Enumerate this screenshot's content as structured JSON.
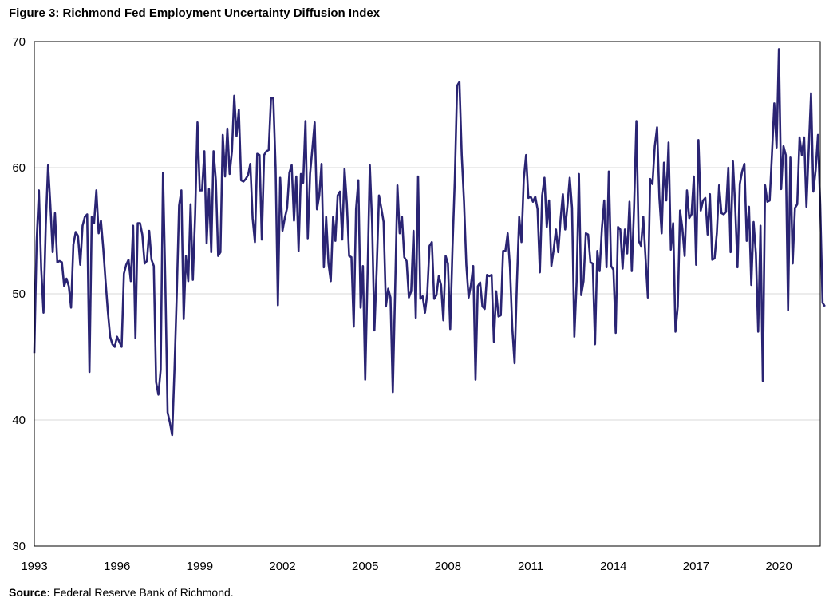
{
  "title": "Figure 3: Richmond Fed Employment Uncertainty Diffusion Index",
  "source": {
    "label": "Source:",
    "text": " Federal Reserve Bank of Richmond."
  },
  "chart_data": {
    "type": "line",
    "title": "Figure 3: Richmond Fed Employment Uncertainty Diffusion Index",
    "xlabel": "",
    "ylabel": "",
    "ylim": [
      30,
      70
    ],
    "xlim": [
      1993.0,
      2021.5
    ],
    "yticks": [
      30,
      40,
      50,
      60,
      70
    ],
    "xticks": [
      1993,
      1996,
      1999,
      2002,
      2005,
      2008,
      2011,
      2014,
      2017,
      2020
    ],
    "grid": {
      "horizontal": true,
      "vertical": false
    },
    "line_color": "#2a2473",
    "series": [
      {
        "x_start": 1993.0,
        "x_step_months": 1,
        "values": [
          45.3,
          54.1,
          58.2,
          52.0,
          48.5,
          55.5,
          60.2,
          57.0,
          53.3,
          56.4,
          52.5,
          52.6,
          52.5,
          50.6,
          51.2,
          50.6,
          48.9,
          53.9,
          54.9,
          54.6,
          52.3,
          55.4,
          56.1,
          56.3,
          43.8,
          56.1,
          55.6,
          58.2,
          54.8,
          55.8,
          53.6,
          51.0,
          48.6,
          46.6,
          46.0,
          45.8,
          46.6,
          46.2,
          45.8,
          51.6,
          52.3,
          52.7,
          51.0,
          55.4,
          46.5,
          55.6,
          55.6,
          54.7,
          52.4,
          52.6,
          55.0,
          52.7,
          52.2,
          43.0,
          42.0,
          44.0,
          59.6,
          51.0,
          40.6,
          39.8,
          38.8,
          44.0,
          50.0,
          57.0,
          58.2,
          48.0,
          53.0,
          51.0,
          57.1,
          51.1,
          56.3,
          63.6,
          58.2,
          58.2,
          61.3,
          54.0,
          58.3,
          53.3,
          61.3,
          59.0,
          53.0,
          53.3,
          62.6,
          59.3,
          63.1,
          59.5,
          61.3,
          65.7,
          62.5,
          64.6,
          59.0,
          58.9,
          59.1,
          59.4,
          60.3,
          56.0,
          54.1,
          61.1,
          61.0,
          54.3,
          61.0,
          61.3,
          61.4,
          65.5,
          65.5,
          60.0,
          49.1,
          59.2,
          55.0,
          56.0,
          56.8,
          59.6,
          60.2,
          55.8,
          59.3,
          53.4,
          59.5,
          58.8,
          63.7,
          54.4,
          59.5,
          61.5,
          63.6,
          56.7,
          57.8,
          60.3,
          52.1,
          56.1,
          52.4,
          51.0,
          56.1,
          54.2,
          57.8,
          58.1,
          54.3,
          59.9,
          57.2,
          53.0,
          52.9,
          47.4,
          56.7,
          59.0,
          48.9,
          52.2,
          43.2,
          51.4,
          60.2,
          55.6,
          47.1,
          52.0,
          57.8,
          56.8,
          55.7,
          49.0,
          50.4,
          49.7,
          42.2,
          50.2,
          58.6,
          54.8,
          56.1,
          52.9,
          52.6,
          49.7,
          50.2,
          55.0,
          48.1,
          59.3,
          49.6,
          49.8,
          48.5,
          50.0,
          53.8,
          54.1,
          49.6,
          49.9,
          51.4,
          50.7,
          47.9,
          53.0,
          52.4,
          47.2,
          53.7,
          59.1,
          66.5,
          66.8,
          61.0,
          57.3,
          52.3,
          49.7,
          50.7,
          52.2,
          43.2,
          50.6,
          50.9,
          49.0,
          48.8,
          51.5,
          51.4,
          51.5,
          46.2,
          50.2,
          48.2,
          48.3,
          53.4,
          53.4,
          54.8,
          52.1,
          47.3,
          44.5,
          50.8,
          56.1,
          54.1,
          59.1,
          61.0,
          57.6,
          57.7,
          57.3,
          57.7,
          56.7,
          51.7,
          57.8,
          59.2,
          55.3,
          57.4,
          52.2,
          53.5,
          55.1,
          53.3,
          55.9,
          57.9,
          55.1,
          57.0,
          59.2,
          56.8,
          46.6,
          51.0,
          59.5,
          49.9,
          51.0,
          54.8,
          54.7,
          52.5,
          52.4,
          46.0,
          53.4,
          51.8,
          55.2,
          57.4,
          52.1,
          59.7,
          52.2,
          51.9,
          46.9,
          55.3,
          55.1,
          52.0,
          55.1,
          53.2,
          57.3,
          51.8,
          56.9,
          63.7,
          54.2,
          53.8,
          56.1,
          52.8,
          49.7,
          59.1,
          58.7,
          61.7,
          63.2,
          57.6,
          54.8,
          60.4,
          57.4,
          62.0,
          53.5,
          55.6,
          47.0,
          49.0,
          56.6,
          55.2,
          53.0,
          58.2,
          56.0,
          56.3,
          59.3,
          52.3,
          62.2,
          56.6,
          57.4,
          57.6,
          54.7,
          57.9,
          52.7,
          52.8,
          54.8,
          58.6,
          56.4,
          56.3,
          56.5,
          60.0,
          53.3,
          60.5,
          56.9,
          52.1,
          58.7,
          59.7,
          60.3,
          54.2,
          56.9,
          50.7,
          55.7,
          53.2,
          47.0,
          55.4,
          43.1,
          58.6,
          57.3,
          57.4,
          61.1,
          65.1,
          61.6,
          69.4,
          58.3,
          61.7,
          61.0,
          48.7,
          60.8,
          52.4,
          56.8,
          57.1,
          62.4,
          61.0,
          62.4,
          56.9,
          61.5,
          65.9,
          58.1,
          59.8,
          62.6,
          57.0,
          49.3,
          49.0
        ]
      }
    ]
  }
}
